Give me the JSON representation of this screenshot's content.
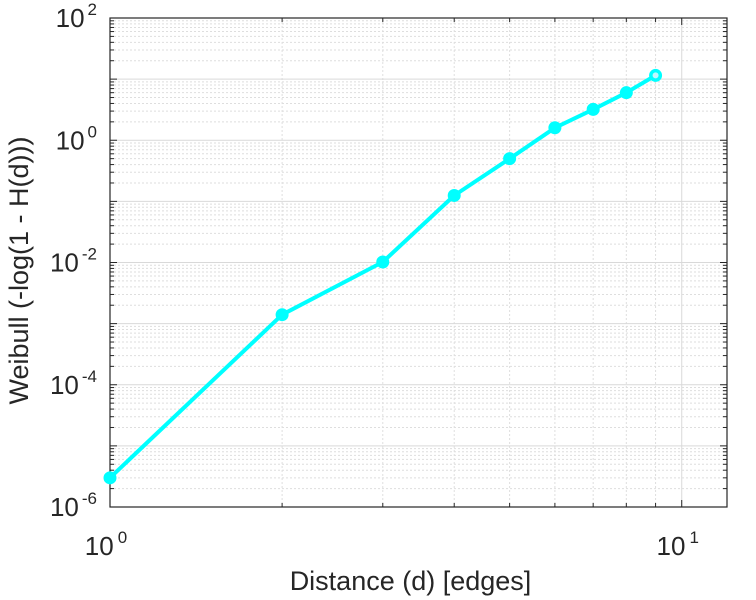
{
  "chart_data": {
    "type": "line",
    "title": "",
    "xlabel": "Distance (d) [edges]",
    "ylabel": "Weibull (-log(1 - H(d)))",
    "xscale": "log",
    "yscale": "log",
    "xlim": [
      1,
      12
    ],
    "ylim": [
      1e-06,
      100
    ],
    "grid": "on (major and minor)",
    "legend": "none",
    "x_ticks": [
      {
        "base": "10",
        "exp": "0",
        "value": 1
      },
      {
        "base": "10",
        "exp": "1",
        "value": 10
      }
    ],
    "y_ticks": [
      {
        "base": "10",
        "exp": "-6",
        "value": 1e-06
      },
      {
        "base": "10",
        "exp": "-4",
        "value": 0.0001
      },
      {
        "base": "10",
        "exp": "-2",
        "value": 0.01
      },
      {
        "base": "10",
        "exp": "0",
        "value": 1
      },
      {
        "base": "10",
        "exp": "2",
        "value": 100
      }
    ],
    "series": [
      {
        "color": "#00ffff",
        "marker": "circle",
        "x": [
          1,
          2,
          3,
          4,
          5,
          6,
          7,
          8,
          9
        ],
        "y": [
          3e-06,
          0.0014,
          0.0102,
          0.125,
          0.5,
          1.6,
          3.2,
          6.0,
          11.5
        ]
      }
    ]
  }
}
